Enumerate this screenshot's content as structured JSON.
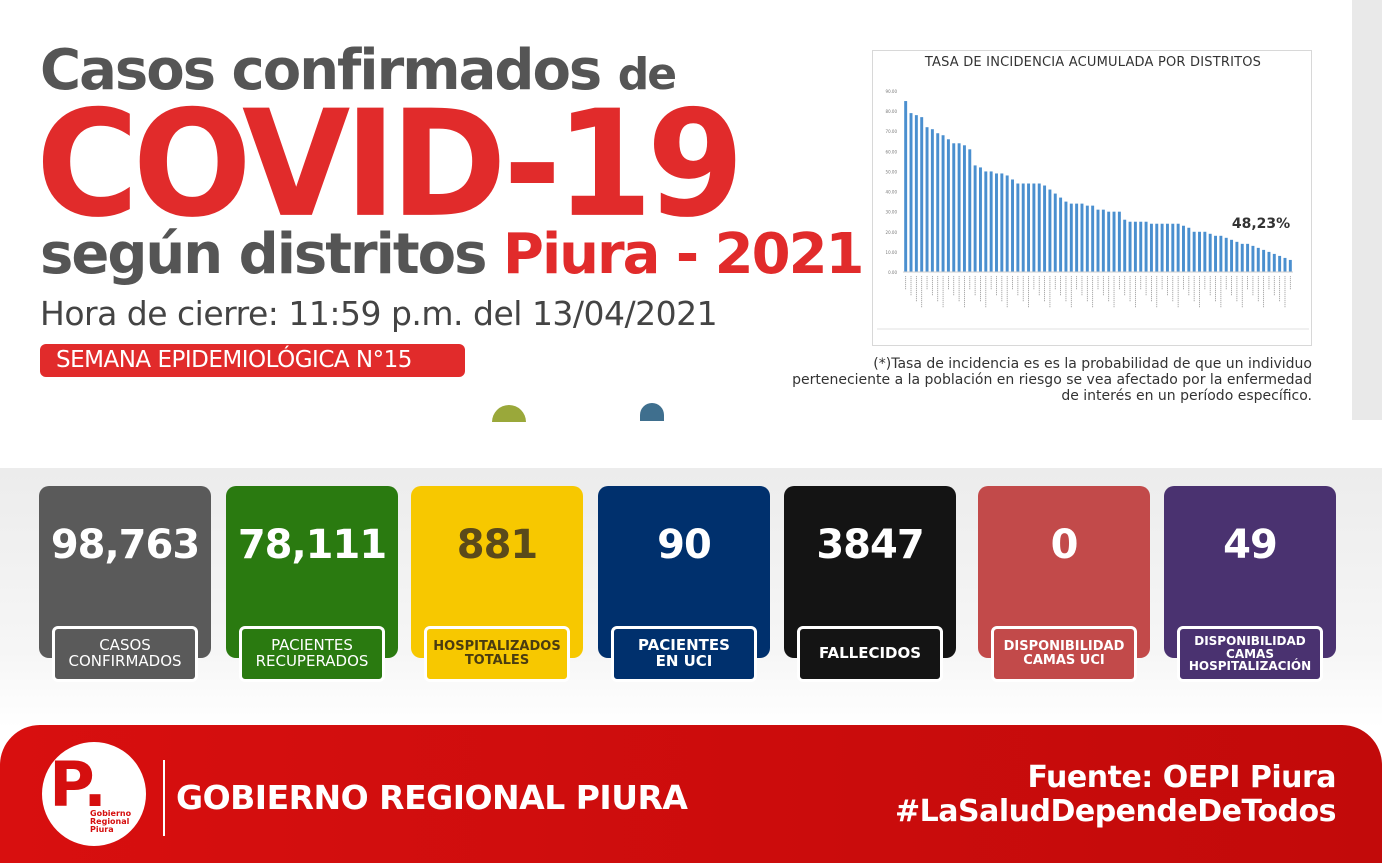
{
  "header": {
    "line1_main": "Casos confirmados",
    "line1_small": "de",
    "covid": "COVID-19",
    "line3_grey": "según distritos",
    "line3_red": "Piura - 2021",
    "closing_time": "Hora de cierre: 11:59 p.m. del 13/04/2021",
    "week_badge": "SEMANA EPIDEMIOLÓGICA N°15"
  },
  "chart_data": {
    "type": "bar",
    "title": "TASA DE INCIDENCIA ACUMULADA POR DISTRITOS",
    "annotation": "48,23%",
    "ylim": [
      0,
      90
    ],
    "yticks": [
      "0.00",
      "10.00",
      "20.00",
      "30.00",
      "40.00",
      "50.00",
      "60.00",
      "70.00",
      "80.00",
      "90.00"
    ],
    "values": [
      85,
      79,
      78,
      77,
      72,
      71,
      69,
      68,
      66,
      64,
      64,
      63,
      61,
      53,
      52,
      50,
      50,
      49,
      49,
      48,
      46,
      44,
      44,
      44,
      44,
      44,
      43,
      41,
      39,
      37,
      35,
      34,
      34,
      34,
      33,
      33,
      31,
      31,
      30,
      30,
      30,
      26,
      25,
      25,
      25,
      25,
      24,
      24,
      24,
      24,
      24,
      24,
      23,
      22,
      20,
      20,
      20,
      19,
      18,
      18,
      17,
      16,
      15,
      14,
      14,
      13,
      12,
      11,
      10,
      9,
      8,
      7,
      6
    ],
    "color": "#4a8fcf"
  },
  "chart_note": "(*)Tasa de incidencia es es la probabilidad de que un individuo perteneciente a la población en riesgo se vea afectado por la enfermedad de interés en un período específico.",
  "stats": [
    {
      "value": "98,763",
      "label": "CASOS\nCONFIRMADOS",
      "color": "#5a5a5a",
      "value_color": "#ffffff"
    },
    {
      "value": "78,111",
      "label": "PACIENTES\nRECUPERADOS",
      "color": "#2a7a10",
      "value_color": "#ffffff"
    },
    {
      "value": "881",
      "label": "HOSPITALIZADOS\nTOTALES",
      "color": "#f7c800",
      "value_color": "#5a4a1a"
    },
    {
      "value": "90",
      "label": "PACIENTES\nEN UCI",
      "color": "#00306d",
      "value_color": "#ffffff"
    },
    {
      "value": "3847",
      "label": "FALLECIDOS",
      "color": "#141414",
      "value_color": "#ffffff"
    },
    {
      "value": "0",
      "label": "DISPONIBILIDAD\nCAMAS UCI",
      "color": "#c24a4a",
      "value_color": "#ffffff"
    },
    {
      "value": "49",
      "label": "DISPONIBILIDAD\nCAMAS\nHOSPITALIZACIÓN",
      "color": "#4a3270",
      "value_color": "#ffffff"
    }
  ],
  "footer": {
    "logo_letter": "P.",
    "logo_text": "Gobierno\nRegional\nPiura",
    "org_name": "GOBIERNO REGIONAL PIURA",
    "source": "Fuente: OEPI Piura",
    "hashtag": "#LaSaludDependeDeTodos"
  }
}
